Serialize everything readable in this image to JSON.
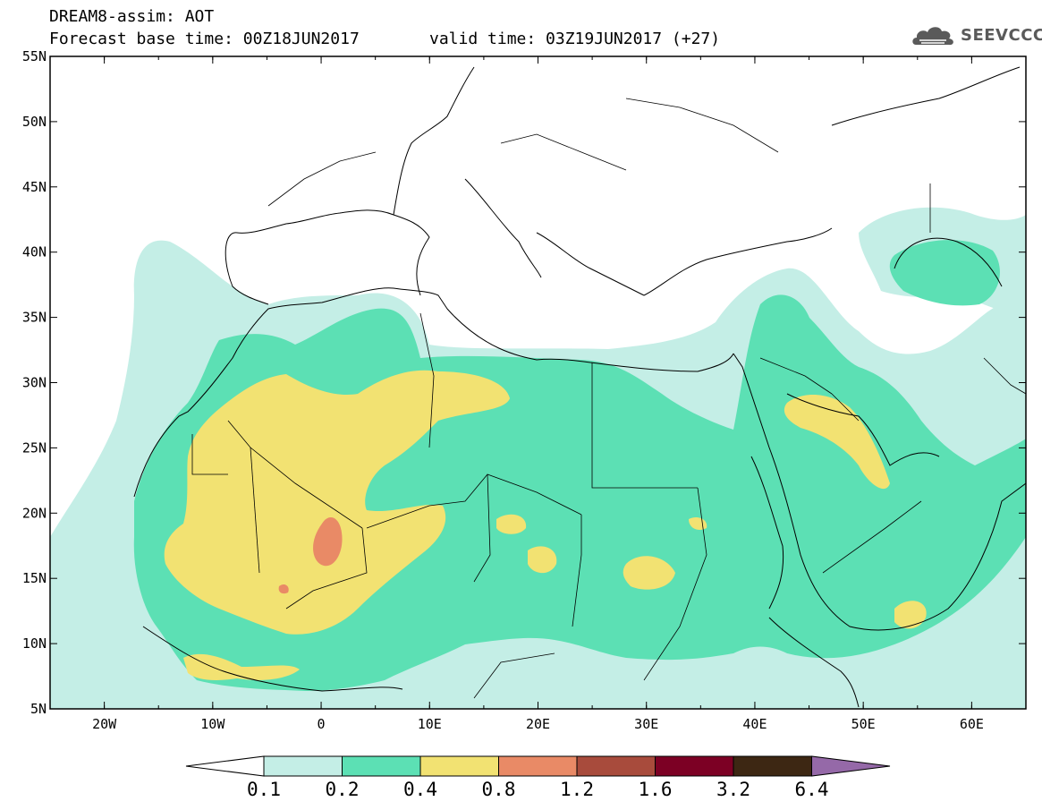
{
  "header": {
    "title": "DREAM8-assim: AOT",
    "base_time": "Forecast base time: 00Z18JUN2017",
    "valid_time": "valid time: 03Z19JUN2017 (+27)",
    "logo_text": "SEEVCCC",
    "logo_icon": "cloud-icon"
  },
  "map": {
    "lon_range": [
      -25,
      65
    ],
    "lat_range": [
      5,
      55
    ],
    "lon_ticks": [
      "20W",
      "10W",
      "0",
      "10E",
      "20E",
      "30E",
      "40E",
      "50E",
      "60E"
    ],
    "lat_ticks": [
      "55N",
      "50N",
      "45N",
      "40N",
      "35N",
      "30N",
      "25N",
      "20N",
      "15N",
      "10N",
      "5N"
    ],
    "background": "#ffffff",
    "border_color": "#000000"
  },
  "legend": {
    "values": [
      "0.1",
      "0.2",
      "0.4",
      "0.8",
      "1.2",
      "1.6",
      "3.2",
      "6.4"
    ],
    "colors": [
      "#ffffff",
      "#c4eee6",
      "#5ce0b4",
      "#f2e272",
      "#e98a66",
      "#a84b3c",
      "#7c0024",
      "#3d2713",
      "#9569a8"
    ]
  }
}
